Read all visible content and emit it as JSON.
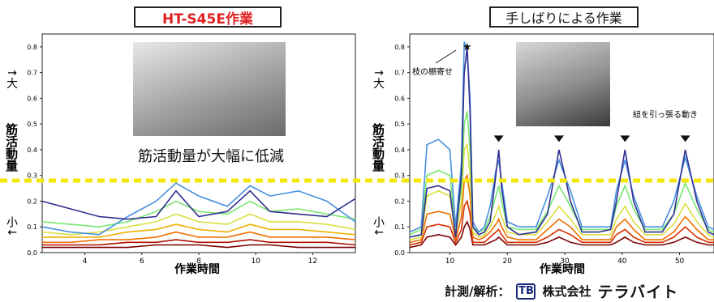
{
  "titles": {
    "left": "HT-S45E作業",
    "right": "手しばりによる作業"
  },
  "captions": {
    "reduction": "筋活動量が大幅に低減",
    "branch_pull": "枝の棚寄せ",
    "string_pull": "紐を引っ張る動き"
  },
  "ylabel_left": {
    "top": "↑大",
    "middle": "筋活動量",
    "bottom": "小↓"
  },
  "ylabel_right": {
    "top": "↑大",
    "middle": "筋活動量",
    "bottom": "小↓"
  },
  "credit": {
    "label": "計測/解析：",
    "logo_glyph": "TB",
    "company_prefix": "株式会社",
    "company_name": "テラバイト"
  },
  "colors": {
    "threshold": "#f5e60a",
    "title_accent": "#e02020",
    "palette": [
      "#7a0000",
      "#b01000",
      "#d83000",
      "#f07000",
      "#f0b000",
      "#d8e040",
      "#78e870",
      "#30d8c0",
      "#4890e0",
      "#303090"
    ]
  },
  "chart_data": [
    {
      "type": "line",
      "title": "HT-S45E作業",
      "xlabel": "作業時間",
      "ylabel": "筋活動量",
      "xlim": [
        2.5,
        13.5
      ],
      "ylim": [
        0,
        0.85
      ],
      "xticks": [
        4,
        6,
        8,
        10,
        12
      ],
      "yticks": [
        0.0,
        0.1,
        0.2,
        0.3,
        0.4,
        0.5,
        0.6,
        0.7,
        0.8
      ],
      "threshold": 0.28,
      "series": [
        {
          "x": [
            2.5,
            3.5,
            4.5,
            5.5,
            6.5,
            7.2,
            8,
            9,
            9.8,
            10.5,
            11.5,
            12.5,
            13.5
          ],
          "y": [
            0.2,
            0.17,
            0.14,
            0.13,
            0.14,
            0.24,
            0.14,
            0.16,
            0.24,
            0.16,
            0.15,
            0.14,
            0.21
          ]
        },
        {
          "x": [
            2.5,
            3.5,
            4.5,
            5.5,
            6.5,
            7.2,
            8,
            9,
            9.8,
            10.5,
            11.5,
            12.5,
            13.5
          ],
          "y": [
            0.1,
            0.08,
            0.07,
            0.14,
            0.2,
            0.27,
            0.22,
            0.18,
            0.26,
            0.22,
            0.24,
            0.2,
            0.12
          ]
        },
        {
          "x": [
            2.5,
            3.5,
            4.5,
            5.5,
            6.5,
            7.2,
            8,
            9,
            9.8,
            10.5,
            11.5,
            12.5,
            13.5
          ],
          "y": [
            0.12,
            0.11,
            0.1,
            0.12,
            0.16,
            0.2,
            0.16,
            0.15,
            0.2,
            0.16,
            0.17,
            0.15,
            0.13
          ]
        },
        {
          "x": [
            2.5,
            3.5,
            4.5,
            5.5,
            6.5,
            7.2,
            8,
            9,
            9.8,
            10.5,
            11.5,
            12.5,
            13.5
          ],
          "y": [
            0.08,
            0.07,
            0.08,
            0.1,
            0.12,
            0.15,
            0.12,
            0.11,
            0.15,
            0.12,
            0.12,
            0.11,
            0.09
          ]
        },
        {
          "x": [
            2.5,
            3.5,
            4.5,
            5.5,
            6.5,
            7.2,
            8,
            9,
            9.8,
            10.5,
            11.5,
            12.5,
            13.5
          ],
          "y": [
            0.06,
            0.06,
            0.06,
            0.08,
            0.09,
            0.11,
            0.09,
            0.08,
            0.11,
            0.09,
            0.09,
            0.08,
            0.07
          ]
        },
        {
          "x": [
            2.5,
            3.5,
            4.5,
            5.5,
            6.5,
            7.2,
            8,
            9,
            9.8,
            10.5,
            11.5,
            12.5,
            13.5
          ],
          "y": [
            0.04,
            0.04,
            0.05,
            0.05,
            0.06,
            0.08,
            0.06,
            0.06,
            0.08,
            0.06,
            0.06,
            0.06,
            0.05
          ]
        },
        {
          "x": [
            2.5,
            3.5,
            4.5,
            5.5,
            6.5,
            7.2,
            8,
            9,
            9.8,
            10.5,
            11.5,
            12.5,
            13.5
          ],
          "y": [
            0.03,
            0.03,
            0.03,
            0.04,
            0.04,
            0.05,
            0.04,
            0.04,
            0.05,
            0.04,
            0.04,
            0.04,
            0.03
          ]
        },
        {
          "x": [
            2.5,
            3.5,
            4.5,
            5.5,
            6.5,
            7.2,
            8,
            9,
            9.8,
            10.5,
            11.5,
            12.5,
            13.5
          ],
          "y": [
            0.02,
            0.02,
            0.02,
            0.02,
            0.03,
            0.03,
            0.03,
            0.02,
            0.03,
            0.03,
            0.02,
            0.02,
            0.02
          ]
        }
      ]
    },
    {
      "type": "line",
      "title": "手しばりによる作業",
      "xlabel": "作業時間",
      "ylabel": "筋活動量",
      "xlim": [
        3,
        56
      ],
      "ylim": [
        0,
        0.85
      ],
      "xticks": [
        10,
        20,
        30,
        40,
        50
      ],
      "yticks": [
        0.0,
        0.1,
        0.2,
        0.3,
        0.4,
        0.5,
        0.6,
        0.7,
        0.8
      ],
      "threshold": 0.28,
      "peak_marker": {
        "x": 13,
        "y": 0.8
      },
      "event_markers": [
        {
          "x": 18.5,
          "y": 0.43
        },
        {
          "x": 29,
          "y": 0.43
        },
        {
          "x": 40.5,
          "y": 0.43
        },
        {
          "x": 51,
          "y": 0.43
        }
      ],
      "series": [
        {
          "x": [
            3,
            5,
            6,
            8,
            10,
            11,
            12,
            12.5,
            13,
            13.5,
            14,
            15,
            16,
            17,
            18,
            18.5,
            19,
            20,
            22,
            25,
            27,
            29,
            31,
            33,
            36,
            38,
            39,
            40.5,
            42,
            44,
            47,
            49,
            51,
            53,
            55,
            56
          ],
          "y": [
            0.06,
            0.07,
            0.25,
            0.26,
            0.24,
            0.06,
            0.3,
            0.7,
            0.8,
            0.55,
            0.1,
            0.07,
            0.08,
            0.12,
            0.3,
            0.4,
            0.25,
            0.1,
            0.07,
            0.08,
            0.15,
            0.4,
            0.2,
            0.08,
            0.08,
            0.09,
            0.2,
            0.4,
            0.2,
            0.08,
            0.08,
            0.15,
            0.4,
            0.2,
            0.08,
            0.07
          ]
        },
        {
          "x": [
            3,
            5,
            6,
            8,
            10,
            11,
            12,
            12.5,
            13,
            13.5,
            14,
            15,
            16,
            17,
            18,
            18.5,
            19,
            20,
            22,
            25,
            27,
            29,
            31,
            33,
            36,
            38,
            39,
            40.5,
            42,
            44,
            47,
            49,
            51,
            53,
            55,
            56
          ],
          "y": [
            0.08,
            0.1,
            0.42,
            0.44,
            0.4,
            0.1,
            0.35,
            0.82,
            0.78,
            0.6,
            0.12,
            0.08,
            0.1,
            0.18,
            0.32,
            0.36,
            0.28,
            0.12,
            0.1,
            0.1,
            0.22,
            0.36,
            0.24,
            0.1,
            0.1,
            0.1,
            0.24,
            0.36,
            0.22,
            0.1,
            0.1,
            0.2,
            0.37,
            0.22,
            0.1,
            0.09
          ]
        },
        {
          "x": [
            3,
            5,
            6,
            8,
            10,
            11,
            12,
            12.5,
            13,
            13.5,
            14,
            15,
            16,
            17,
            18,
            18.5,
            19,
            20,
            22,
            25,
            27,
            29,
            31,
            33,
            36,
            38,
            39,
            40.5,
            42,
            44,
            47,
            49,
            51,
            53,
            55,
            56
          ],
          "y": [
            0.07,
            0.09,
            0.3,
            0.32,
            0.3,
            0.09,
            0.25,
            0.5,
            0.55,
            0.4,
            0.1,
            0.08,
            0.09,
            0.14,
            0.22,
            0.26,
            0.2,
            0.1,
            0.09,
            0.09,
            0.16,
            0.26,
            0.18,
            0.09,
            0.09,
            0.09,
            0.18,
            0.26,
            0.17,
            0.09,
            0.09,
            0.15,
            0.27,
            0.17,
            0.09,
            0.08
          ]
        },
        {
          "x": [
            3,
            5,
            6,
            8,
            10,
            11,
            12,
            12.5,
            13,
            13.5,
            14,
            15,
            16,
            17,
            18,
            18.5,
            19,
            20,
            22,
            25,
            27,
            29,
            31,
            33,
            36,
            38,
            39,
            40.5,
            42,
            44,
            47,
            49,
            51,
            53,
            55,
            56
          ],
          "y": [
            0.05,
            0.06,
            0.22,
            0.24,
            0.22,
            0.07,
            0.2,
            0.4,
            0.42,
            0.3,
            0.08,
            0.06,
            0.07,
            0.1,
            0.15,
            0.18,
            0.14,
            0.08,
            0.07,
            0.07,
            0.12,
            0.18,
            0.13,
            0.07,
            0.07,
            0.07,
            0.13,
            0.18,
            0.12,
            0.07,
            0.07,
            0.11,
            0.19,
            0.12,
            0.07,
            0.06
          ]
        },
        {
          "x": [
            3,
            5,
            6,
            8,
            10,
            11,
            12,
            12.5,
            13,
            13.5,
            14,
            15,
            16,
            17,
            18,
            18.5,
            19,
            20,
            22,
            25,
            27,
            29,
            31,
            33,
            36,
            38,
            39,
            40.5,
            42,
            44,
            47,
            49,
            51,
            53,
            55,
            56
          ],
          "y": [
            0.04,
            0.05,
            0.15,
            0.16,
            0.15,
            0.05,
            0.14,
            0.28,
            0.3,
            0.22,
            0.06,
            0.05,
            0.06,
            0.08,
            0.11,
            0.13,
            0.1,
            0.06,
            0.05,
            0.05,
            0.09,
            0.13,
            0.1,
            0.05,
            0.05,
            0.05,
            0.1,
            0.13,
            0.09,
            0.05,
            0.05,
            0.08,
            0.14,
            0.09,
            0.05,
            0.05
          ]
        },
        {
          "x": [
            3,
            5,
            6,
            8,
            10,
            11,
            12,
            12.5,
            13,
            13.5,
            14,
            15,
            16,
            17,
            18,
            18.5,
            19,
            20,
            22,
            25,
            27,
            29,
            31,
            33,
            36,
            38,
            39,
            40.5,
            42,
            44,
            47,
            49,
            51,
            53,
            55,
            56
          ],
          "y": [
            0.03,
            0.04,
            0.1,
            0.11,
            0.1,
            0.04,
            0.09,
            0.18,
            0.2,
            0.15,
            0.04,
            0.04,
            0.04,
            0.06,
            0.08,
            0.09,
            0.07,
            0.04,
            0.04,
            0.04,
            0.06,
            0.09,
            0.07,
            0.04,
            0.04,
            0.04,
            0.07,
            0.09,
            0.06,
            0.04,
            0.04,
            0.06,
            0.1,
            0.06,
            0.04,
            0.04
          ]
        },
        {
          "x": [
            3,
            5,
            6,
            8,
            10,
            11,
            12,
            12.5,
            13,
            13.5,
            14,
            15,
            16,
            17,
            18,
            18.5,
            19,
            20,
            22,
            25,
            27,
            29,
            31,
            33,
            36,
            38,
            39,
            40.5,
            42,
            44,
            47,
            49,
            51,
            53,
            55,
            56
          ],
          "y": [
            0.02,
            0.03,
            0.06,
            0.07,
            0.06,
            0.03,
            0.06,
            0.1,
            0.12,
            0.09,
            0.03,
            0.03,
            0.03,
            0.04,
            0.05,
            0.06,
            0.05,
            0.03,
            0.03,
            0.03,
            0.04,
            0.06,
            0.04,
            0.03,
            0.03,
            0.03,
            0.04,
            0.06,
            0.04,
            0.03,
            0.03,
            0.04,
            0.06,
            0.04,
            0.03,
            0.03
          ]
        }
      ]
    }
  ]
}
